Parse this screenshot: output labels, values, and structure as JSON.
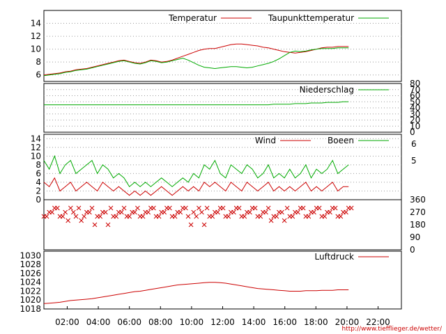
{
  "chart_data": [
    {
      "type": "line",
      "title": "",
      "ylim": [
        5,
        16
      ],
      "yticks": [
        "6",
        "8",
        "10",
        "12",
        "14"
      ],
      "grid": true,
      "legend_position": "top-right",
      "series": [
        {
          "name": "Temperatur",
          "color": "#cc0000",
          "values": [
            6.0,
            6.1,
            6.2,
            6.3,
            6.5,
            6.6,
            6.8,
            6.9,
            7.0,
            7.2,
            7.4,
            7.6,
            7.8,
            8.0,
            8.2,
            8.3,
            8.1,
            7.9,
            7.8,
            8.0,
            8.3,
            8.2,
            8.0,
            8.1,
            8.3,
            8.6,
            8.9,
            9.2,
            9.5,
            9.8,
            10.0,
            10.1,
            10.1,
            10.3,
            10.5,
            10.7,
            10.8,
            10.8,
            10.7,
            10.6,
            10.5,
            10.3,
            10.2,
            10.0,
            9.8,
            9.6,
            9.5,
            9.4,
            9.5,
            9.6,
            9.8,
            10.0,
            10.2,
            10.3,
            10.3,
            10.4,
            10.4,
            10.4
          ]
        },
        {
          "name": "Taupunkttemperatur",
          "color": "#00aa00",
          "values": [
            5.9,
            6.0,
            6.1,
            6.2,
            6.4,
            6.5,
            6.7,
            6.8,
            6.9,
            7.1,
            7.3,
            7.5,
            7.7,
            7.9,
            8.1,
            8.2,
            8.0,
            7.8,
            7.7,
            7.9,
            8.2,
            8.1,
            7.9,
            8.0,
            8.2,
            8.4,
            8.6,
            8.3,
            7.9,
            7.5,
            7.2,
            7.1,
            7.0,
            7.1,
            7.2,
            7.3,
            7.3,
            7.2,
            7.1,
            7.2,
            7.4,
            7.6,
            7.8,
            8.1,
            8.5,
            9.0,
            9.5,
            9.7,
            9.6,
            9.7,
            9.9,
            10.0,
            10.1,
            10.1,
            10.1,
            10.2,
            10.2,
            10.2
          ]
        }
      ]
    },
    {
      "type": "line",
      "title": "",
      "ylim": [
        0,
        80
      ],
      "yticks": [
        "0",
        "10",
        "20",
        "30",
        "40",
        "50",
        "60",
        "70",
        "80"
      ],
      "legend_position": "top-right",
      "series": [
        {
          "name": "Niederschlag",
          "color": "#00aa00",
          "values": [
            45,
            45,
            45,
            45,
            45,
            45,
            45,
            45,
            45,
            45,
            45,
            45,
            45,
            45,
            45,
            45,
            45,
            45,
            45,
            45,
            45,
            45,
            45,
            45,
            45,
            45,
            45,
            45,
            45,
            45,
            45,
            45,
            45,
            45,
            45,
            45,
            45,
            45,
            45,
            45,
            45,
            45,
            45,
            46,
            46,
            46,
            46,
            47,
            47,
            47,
            48,
            48,
            48,
            49,
            49,
            49,
            50,
            50
          ]
        }
      ]
    },
    {
      "type": "line",
      "title": "",
      "ylim": [
        0,
        15
      ],
      "yticks": [
        "0",
        "2",
        "4",
        "6",
        "8",
        "10",
        "12",
        "14"
      ],
      "secondary_yticks": [
        "5",
        "6"
      ],
      "legend_position": "top-right",
      "series": [
        {
          "name": "Wind",
          "color": "#cc0000",
          "values": [
            4,
            3,
            5,
            2,
            3,
            4,
            2,
            3,
            4,
            3,
            2,
            4,
            3,
            2,
            3,
            2,
            1,
            2,
            1,
            2,
            1,
            2,
            3,
            2,
            1,
            2,
            3,
            2,
            3,
            2,
            4,
            3,
            4,
            3,
            2,
            4,
            3,
            2,
            4,
            3,
            2,
            3,
            4,
            2,
            3,
            2,
            3,
            2,
            3,
            4,
            2,
            3,
            2,
            3,
            4,
            2,
            3,
            3
          ]
        },
        {
          "name": "Boeen",
          "color": "#00aa00",
          "values": [
            9,
            7,
            10,
            6,
            8,
            9,
            6,
            7,
            8,
            9,
            6,
            8,
            7,
            5,
            6,
            5,
            3,
            4,
            3,
            4,
            3,
            4,
            5,
            4,
            3,
            4,
            5,
            4,
            6,
            5,
            8,
            7,
            9,
            6,
            5,
            8,
            7,
            6,
            8,
            7,
            5,
            6,
            8,
            5,
            6,
            5,
            7,
            5,
            6,
            8,
            5,
            7,
            6,
            7,
            9,
            6,
            7,
            8
          ]
        }
      ]
    },
    {
      "type": "scatter",
      "title": "",
      "ylim": [
        0,
        360
      ],
      "yticks": [
        "0",
        "90",
        "180",
        "270",
        "360"
      ],
      "series": [
        {
          "name": "",
          "color": "#cc0000",
          "values": [
            240,
            270,
            300,
            240,
            270,
            300,
            240,
            210,
            270,
            300,
            240,
            270,
            180,
            240,
            270,
            300,
            240,
            270,
            240,
            270,
            300,
            240,
            270,
            300,
            240,
            270,
            300,
            240,
            270,
            300,
            180,
            240,
            270,
            300,
            240,
            270,
            300,
            240,
            270,
            300,
            240,
            270,
            300,
            240,
            270,
            210,
            240,
            270,
            300,
            240,
            270,
            300,
            240,
            270,
            300,
            240,
            270,
            300
          ]
        }
      ]
    },
    {
      "type": "line",
      "title": "",
      "ylim": [
        1018,
        1031
      ],
      "yticks": [
        "1018",
        "1020",
        "1022",
        "1024",
        "1026",
        "1028",
        "1030"
      ],
      "legend_position": "top-right",
      "series": [
        {
          "name": "Luftdruck",
          "color": "#cc0000",
          "values": [
            1019.2,
            1019.3,
            1019.4,
            1019.5,
            1019.7,
            1019.9,
            1020.0,
            1020.1,
            1020.2,
            1020.3,
            1020.5,
            1020.7,
            1020.9,
            1021.1,
            1021.3,
            1021.5,
            1021.7,
            1021.9,
            1022.0,
            1022.2,
            1022.4,
            1022.6,
            1022.8,
            1023.0,
            1023.2,
            1023.4,
            1023.5,
            1023.6,
            1023.7,
            1023.8,
            1023.9,
            1024.0,
            1024.0,
            1023.9,
            1023.8,
            1023.6,
            1023.4,
            1023.2,
            1023.0,
            1022.8,
            1022.6,
            1022.5,
            1022.4,
            1022.3,
            1022.2,
            1022.1,
            1022.0,
            1022.0,
            1022.0,
            1022.1,
            1022.1,
            1022.1,
            1022.2,
            1022.2,
            1022.2,
            1022.3,
            1022.3,
            1022.3
          ]
        }
      ]
    }
  ],
  "x_axis": {
    "tick_labels": [
      "02:00",
      "04:00",
      "06:00",
      "08:00",
      "10:00",
      "12:00",
      "14:00",
      "16:00",
      "18:00",
      "20:00",
      "22:00"
    ]
  },
  "footer": {
    "url": "http://www.tiefflieger.de/wetter/"
  },
  "colors": {
    "red": "#cc0000",
    "green": "#00aa00"
  }
}
